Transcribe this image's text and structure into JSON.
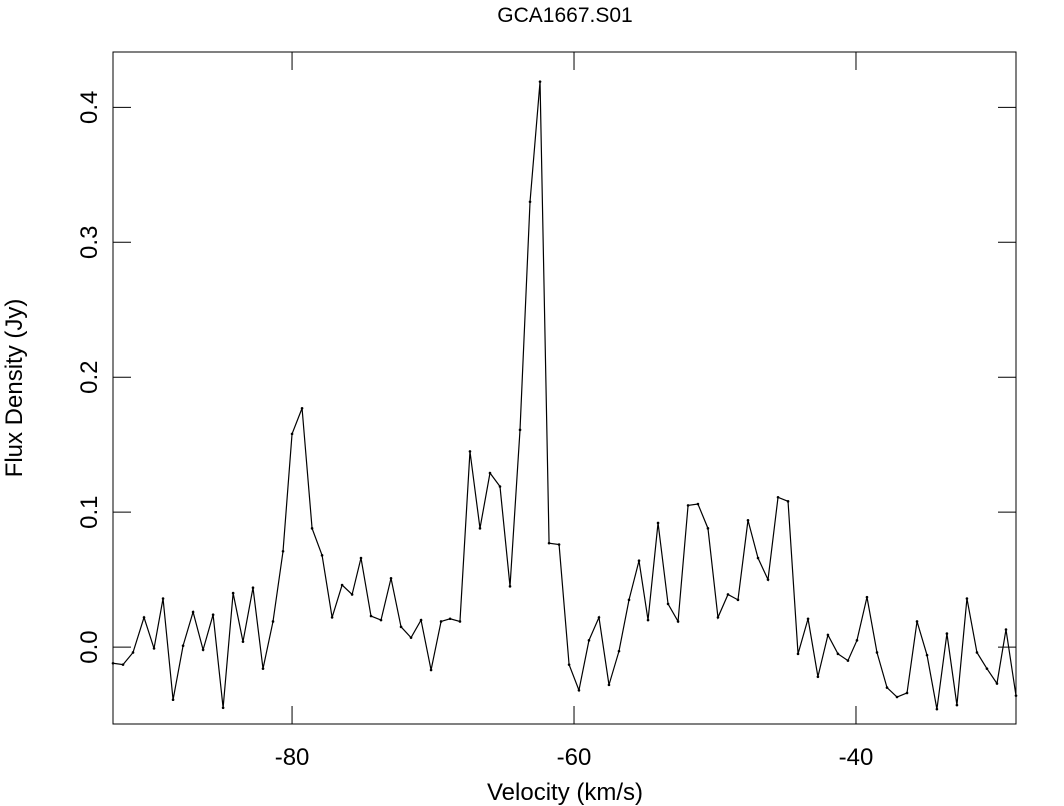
{
  "chart_data": {
    "type": "line",
    "title": "GCA1667.S01",
    "x_label": "Velocity (km/s)",
    "y_label": "Flux Density (Jy)",
    "x": [
      -92.7,
      -91.99,
      -91.28,
      -90.5,
      -89.79,
      -89.15,
      -88.44,
      -87.73,
      -87.02,
      -86.31,
      -85.6,
      -84.89,
      -84.18,
      -83.48,
      -82.77,
      -82.06,
      -81.35,
      -80.64,
      -80.0,
      -79.29,
      -78.58,
      -77.87,
      -77.16,
      -76.45,
      -75.74,
      -75.11,
      -74.4,
      -73.69,
      -72.98,
      -72.27,
      -71.56,
      -70.85,
      -70.14,
      -69.43,
      -68.79,
      -68.09,
      -67.38,
      -66.67,
      -65.96,
      -65.25,
      -64.54,
      -63.83,
      -63.12,
      -62.41,
      -61.77,
      -61.06,
      -60.35,
      -59.65,
      -58.94,
      -58.23,
      -57.52,
      -56.81,
      -56.1,
      -55.39,
      -54.75,
      -54.04,
      -53.33,
      -52.62,
      -51.91,
      -51.21,
      -50.5,
      -49.79,
      -49.08,
      -48.37,
      -47.66,
      -46.95,
      -46.24,
      -45.53,
      -44.82,
      -44.11,
      -43.4,
      -42.7,
      -41.99,
      -41.28,
      -40.57,
      -39.93,
      -39.22,
      -38.51,
      -37.8,
      -37.09,
      -36.38,
      -35.67,
      -34.96,
      -34.26,
      -33.55,
      -32.84,
      -32.13,
      -31.42,
      -30.71,
      -30.0,
      -29.36,
      -28.65
    ],
    "series": [
      {
        "name": "GCA1667.S01",
        "color": "#000000",
        "values": [
          -0.012,
          -0.013,
          -0.004,
          0.022,
          -0.001,
          0.036,
          -0.039,
          0.001,
          0.026,
          -0.002,
          0.024,
          -0.045,
          0.04,
          0.004,
          0.044,
          -0.016,
          0.019,
          0.071,
          0.158,
          0.177,
          0.088,
          0.068,
          0.022,
          0.046,
          0.039,
          0.066,
          0.023,
          0.02,
          0.051,
          0.015,
          0.007,
          0.02,
          -0.017,
          0.019,
          0.021,
          0.019,
          0.145,
          0.088,
          0.129,
          0.119,
          0.045,
          0.161,
          0.33,
          0.419,
          0.077,
          0.076,
          -0.013,
          -0.032,
          0.005,
          0.022,
          -0.028,
          -0.003,
          0.035,
          0.064,
          0.02,
          0.092,
          0.032,
          0.019,
          0.105,
          0.106,
          0.088,
          0.022,
          0.039,
          0.035,
          0.094,
          0.066,
          0.05,
          0.111,
          0.108,
          -0.005,
          0.021,
          -0.022,
          0.009,
          -0.005,
          -0.01,
          0.005,
          0.037,
          -0.004,
          -0.03,
          -0.037,
          -0.034,
          0.019,
          -0.006,
          -0.046,
          0.01,
          -0.043,
          0.036,
          -0.004,
          -0.016,
          -0.027,
          0.013,
          -0.036
        ]
      }
    ],
    "xlim": [
      -92.7,
      -28.65
    ],
    "ylim": [
      -0.057,
      0.441
    ],
    "xticks": [
      -80,
      -60,
      -40
    ],
    "yticks": [
      {
        "value": 0,
        "label": "0.0"
      },
      0.1,
      0.2,
      0.3,
      0.4
    ]
  }
}
